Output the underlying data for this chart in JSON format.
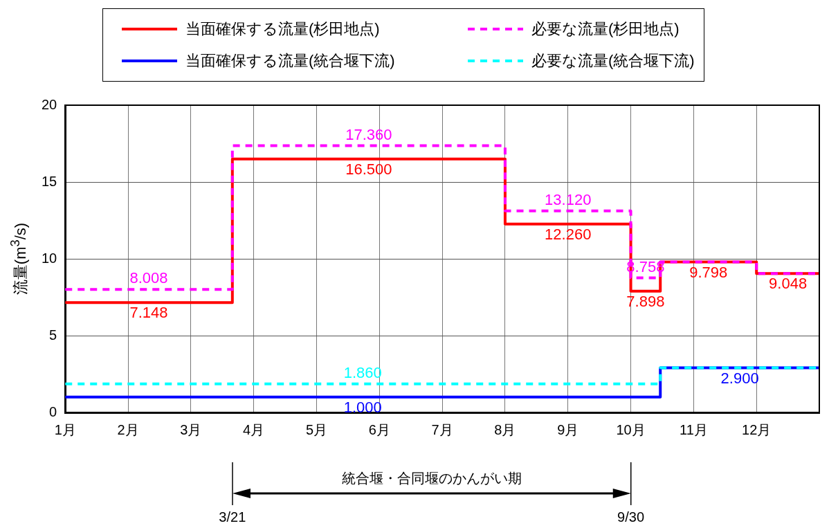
{
  "chart_data": {
    "type": "step",
    "ylabel": "流量(m$^{3}$/s)",
    "x": [
      1,
      2.33,
      3.66,
      5.83,
      8,
      9,
      10,
      10.235,
      10.47,
      11.235,
      12,
      12.5,
      13
    ],
    "xlim": [
      1,
      13
    ],
    "xticks": [
      {
        "value": 1,
        "label": "1月"
      },
      {
        "value": 2,
        "label": "2月"
      },
      {
        "value": 3,
        "label": "3月"
      },
      {
        "value": 4,
        "label": "4月"
      },
      {
        "value": 5,
        "label": "5月"
      },
      {
        "value": 6,
        "label": "6月"
      },
      {
        "value": 7,
        "label": "7月"
      },
      {
        "value": 8,
        "label": "8月"
      },
      {
        "value": 9,
        "label": "9月"
      },
      {
        "value": 10,
        "label": "10月"
      },
      {
        "value": 11,
        "label": "11月"
      },
      {
        "value": 12,
        "label": "12月"
      },
      {
        "value": 13,
        "label": null
      }
    ],
    "ylim": [
      0,
      20
    ],
    "yticks": [
      0,
      5,
      10,
      15,
      20
    ],
    "grid": true,
    "legend": "top",
    "series": [
      {
        "name": "当面確保する流量(杉田地点)",
        "color": "#ff0000",
        "line_style": "solid",
        "values": [
          7.148,
          7.148,
          16.5,
          16.5,
          12.26,
          12.26,
          7.898,
          7.898,
          9.798,
          9.798,
          9.048,
          9.048,
          9.048
        ],
        "value_labels": [
          null,
          "7.148",
          null,
          "16.500",
          null,
          "12.260",
          null,
          "7.898",
          null,
          "9.798",
          null,
          "9.048",
          null
        ]
      },
      {
        "name": "必要な流量(杉田地点)",
        "color": "#ff00ff",
        "line_style": "dashed",
        "values": [
          8.008,
          8.008,
          17.36,
          17.36,
          13.12,
          13.12,
          8.758,
          8.758,
          9.798,
          9.798,
          9.048,
          9.048,
          9.048
        ],
        "value_labels": [
          null,
          "8.008",
          null,
          "17.360",
          null,
          "13.120",
          null,
          "8.758",
          null,
          null,
          null,
          null,
          null
        ]
      },
      {
        "name": "当面確保する流量(統合堰下流)",
        "color": "#0000ff",
        "line_style": "solid",
        "x": [
          1,
          5.735,
          10.47,
          11.735,
          13
        ],
        "values": [
          1.0,
          1.0,
          2.9,
          2.9,
          2.9
        ],
        "value_labels": [
          null,
          "1.000",
          null,
          "2.900",
          null
        ]
      },
      {
        "name": "必要な流量(統合堰下流)",
        "color": "#00ffff",
        "line_style": "dashed",
        "x": [
          1,
          5.735,
          10.47,
          13
        ],
        "values": [
          1.86,
          1.86,
          2.9,
          2.9
        ],
        "value_labels": [
          null,
          "1.860",
          null,
          null
        ]
      }
    ],
    "annotations": [
      {
        "text": "3/21",
        "x": 3.66
      },
      {
        "text": "9/30",
        "x": 10
      },
      "統合堰・合同堰のかんがい期"
    ]
  }
}
